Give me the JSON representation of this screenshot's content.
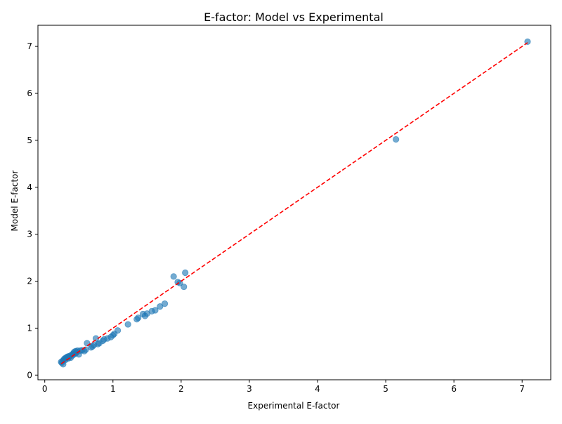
{
  "chart_data": {
    "type": "scatter",
    "title": "E-factor: Model vs Experimental",
    "xlabel": "Experimental E-factor",
    "ylabel": "Model E-factor",
    "xlim": [
      -0.1,
      7.42
    ],
    "ylim": [
      -0.1,
      7.45
    ],
    "xticks": [
      0,
      1,
      2,
      3,
      4,
      5,
      6,
      7
    ],
    "yticks": [
      0,
      1,
      2,
      3,
      4,
      5,
      6,
      7
    ],
    "grid": false,
    "colors": {
      "points": "#1f77b4",
      "reference_line": "#ff0000",
      "axes": "#000000"
    },
    "reference_line": {
      "style": "dashed",
      "x": [
        0.24,
        7.08
      ],
      "y": [
        0.24,
        7.08
      ]
    },
    "series": [
      {
        "x": [
          0.24,
          0.25,
          0.26,
          0.27,
          0.28,
          0.29,
          0.3,
          0.31,
          0.32,
          0.33,
          0.34,
          0.35,
          0.36,
          0.37,
          0.38,
          0.4,
          0.41,
          0.42,
          0.43,
          0.44,
          0.45,
          0.46,
          0.47,
          0.48,
          0.5,
          0.52,
          0.55,
          0.58,
          0.6,
          0.62,
          0.68,
          0.7,
          0.72,
          0.75,
          0.78,
          0.8,
          0.85,
          0.87,
          0.92,
          0.97,
          1.0,
          1.02,
          1.07,
          1.22,
          1.35,
          1.37,
          1.44,
          1.47,
          1.5,
          1.57,
          1.62,
          1.69,
          1.76,
          1.89,
          1.95,
          1.98,
          2.04,
          2.06,
          5.15,
          7.08
        ],
        "y": [
          0.28,
          0.26,
          0.3,
          0.23,
          0.33,
          0.35,
          0.32,
          0.37,
          0.36,
          0.39,
          0.35,
          0.4,
          0.38,
          0.41,
          0.37,
          0.44,
          0.42,
          0.46,
          0.49,
          0.45,
          0.51,
          0.47,
          0.5,
          0.52,
          0.44,
          0.52,
          0.53,
          0.51,
          0.54,
          0.68,
          0.59,
          0.61,
          0.64,
          0.78,
          0.66,
          0.68,
          0.73,
          0.76,
          0.78,
          0.81,
          0.85,
          0.88,
          0.95,
          1.08,
          1.19,
          1.22,
          1.3,
          1.26,
          1.31,
          1.36,
          1.38,
          1.46,
          1.52,
          2.1,
          1.98,
          1.96,
          1.88,
          2.18,
          5.02,
          7.1
        ]
      }
    ]
  }
}
